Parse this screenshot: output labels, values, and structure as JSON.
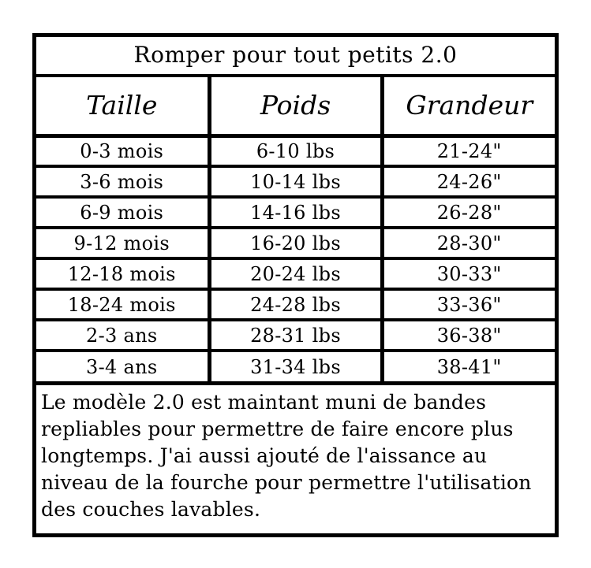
{
  "page": {
    "background": "#ffffff",
    "border_color": "#000000",
    "text_color": "#000000"
  },
  "chart": {
    "title": "Romper pour tout petits 2.0",
    "columns": [
      "Taille",
      "Poids",
      "Grandeur"
    ],
    "rows": [
      [
        "0-3 mois",
        "6-10 lbs",
        "21-24\""
      ],
      [
        "3-6 mois",
        "10-14 lbs",
        "24-26\""
      ],
      [
        "6-9 mois",
        "14-16 lbs",
        "26-28\""
      ],
      [
        "9-12 mois",
        "16-20 lbs",
        "28-30\""
      ],
      [
        "12-18 mois",
        "20-24 lbs",
        "30-33\""
      ],
      [
        "18-24 mois",
        "24-28 lbs",
        "33-36\""
      ],
      [
        "2-3 ans",
        "28-31 lbs",
        "36-38\""
      ],
      [
        "3-4 ans",
        "31-34 lbs",
        "38-41\""
      ]
    ],
    "note": "Le modèle 2.0 est maintant muni de bandes repliables pour permettre de faire encore plus longtemps. J'ai aussi ajouté de l'aissance au niveau de la fourche pour permettre l'utilisation des couches lavables."
  }
}
